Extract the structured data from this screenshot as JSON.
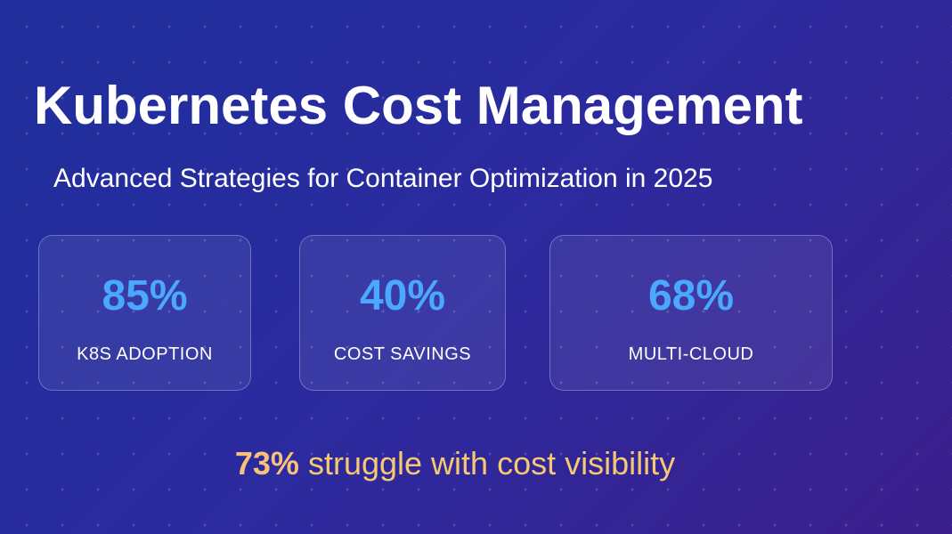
{
  "header": {
    "title": "Kubernetes Cost Management",
    "subtitle": "Advanced Strategies for Container Optimization in 2025"
  },
  "stats": [
    {
      "value": "85%",
      "label": "K8S ADOPTION"
    },
    {
      "value": "40%",
      "label": "COST SAVINGS"
    },
    {
      "value": "68%",
      "label": "MULTI-CLOUD"
    }
  ],
  "callout": {
    "highlight": "73%",
    "text": "struggle with cost visibility"
  }
}
